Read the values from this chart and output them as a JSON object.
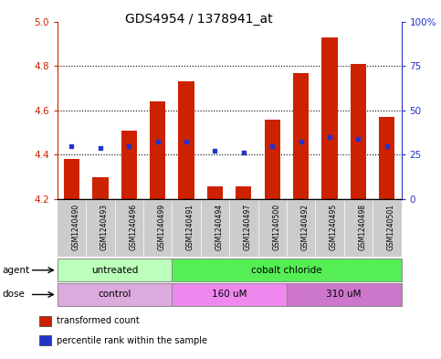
{
  "title": "GDS4954 / 1378941_at",
  "samples": [
    "GSM1240490",
    "GSM1240493",
    "GSM1240496",
    "GSM1240499",
    "GSM1240491",
    "GSM1240494",
    "GSM1240497",
    "GSM1240500",
    "GSM1240492",
    "GSM1240495",
    "GSM1240498",
    "GSM1240501"
  ],
  "bar_values": [
    4.38,
    4.3,
    4.51,
    4.64,
    4.73,
    4.26,
    4.26,
    4.56,
    4.77,
    4.93,
    4.81,
    4.57
  ],
  "bar_bottom": 4.2,
  "blue_marker_values": [
    4.44,
    4.43,
    4.44,
    4.46,
    4.46,
    4.42,
    4.41,
    4.44,
    4.46,
    4.48,
    4.47,
    4.44
  ],
  "ylim_left": [
    4.2,
    5.0
  ],
  "ylim_right": [
    0,
    100
  ],
  "yticks_left": [
    4.2,
    4.4,
    4.6,
    4.8,
    5.0
  ],
  "yticks_right": [
    0,
    25,
    50,
    75,
    100
  ],
  "ytick_labels_right": [
    "0",
    "25",
    "50",
    "75",
    "100%"
  ],
  "bar_color": "#cc2200",
  "blue_color": "#2233cc",
  "agent_groups": [
    {
      "label": "untreated",
      "start": 0,
      "end": 4,
      "color": "#bbffbb"
    },
    {
      "label": "cobalt chloride",
      "start": 4,
      "end": 12,
      "color": "#55ee55"
    }
  ],
  "dose_groups": [
    {
      "label": "control",
      "start": 0,
      "end": 4,
      "color": "#ddaadd"
    },
    {
      "label": "160 uM",
      "start": 4,
      "end": 8,
      "color": "#ee88ee"
    },
    {
      "label": "310 uM",
      "start": 8,
      "end": 12,
      "color": "#cc77cc"
    }
  ],
  "legend_items": [
    {
      "label": "transformed count",
      "color": "#cc2200"
    },
    {
      "label": "percentile rank within the sample",
      "color": "#2233cc"
    }
  ],
  "bg_color": "#ffffff",
  "plot_bg": "#ffffff",
  "bar_width": 0.55,
  "agent_label": "agent",
  "dose_label": "dose",
  "sample_bg_color": "#cccccc"
}
